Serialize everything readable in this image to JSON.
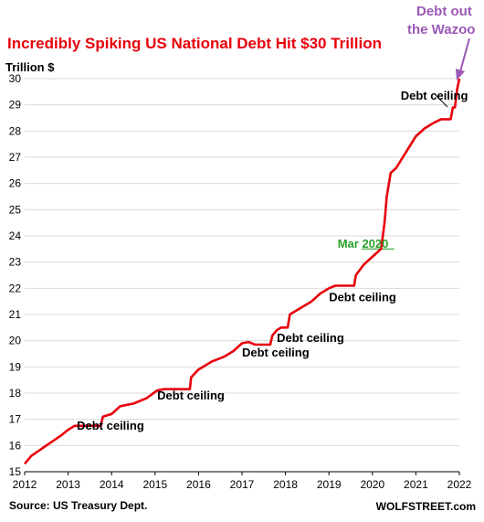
{
  "chart_data": {
    "type": "line",
    "title": "Incredibly Spiking US National Debt Hit $30 Trillion",
    "ylabel": "Trillion $",
    "xlabel": "",
    "xlim": [
      2012,
      2022
    ],
    "ylim": [
      15,
      30
    ],
    "grid": true,
    "x_ticks": [
      "2012",
      "2013",
      "2014",
      "2015",
      "2016",
      "2017",
      "2018",
      "2019",
      "2020",
      "2021",
      "2022"
    ],
    "y_ticks": [
      "15",
      "16",
      "17",
      "18",
      "19",
      "20",
      "21",
      "22",
      "23",
      "24",
      "25",
      "26",
      "27",
      "28",
      "29",
      "30"
    ],
    "series": [
      {
        "color": "#e8000b",
        "points": [
          [
            2012.0,
            15.3
          ],
          [
            2012.15,
            15.6
          ],
          [
            2012.5,
            16.0
          ],
          [
            2012.85,
            16.4
          ],
          [
            2013.0,
            16.6
          ],
          [
            2013.15,
            16.75
          ],
          [
            2013.4,
            16.75
          ],
          [
            2013.75,
            16.75
          ],
          [
            2013.8,
            17.1
          ],
          [
            2014.0,
            17.2
          ],
          [
            2014.2,
            17.5
          ],
          [
            2014.5,
            17.6
          ],
          [
            2014.8,
            17.8
          ],
          [
            2015.05,
            18.1
          ],
          [
            2015.2,
            18.15
          ],
          [
            2015.5,
            18.15
          ],
          [
            2015.8,
            18.15
          ],
          [
            2015.83,
            18.6
          ],
          [
            2016.0,
            18.9
          ],
          [
            2016.3,
            19.2
          ],
          [
            2016.6,
            19.4
          ],
          [
            2016.8,
            19.6
          ],
          [
            2017.0,
            19.9
          ],
          [
            2017.15,
            19.95
          ],
          [
            2017.3,
            19.85
          ],
          [
            2017.5,
            19.85
          ],
          [
            2017.65,
            19.85
          ],
          [
            2017.7,
            20.2
          ],
          [
            2017.8,
            20.4
          ],
          [
            2017.9,
            20.5
          ],
          [
            2018.05,
            20.5
          ],
          [
            2018.1,
            21.0
          ],
          [
            2018.3,
            21.2
          ],
          [
            2018.6,
            21.5
          ],
          [
            2018.8,
            21.8
          ],
          [
            2019.0,
            22.0
          ],
          [
            2019.15,
            22.1
          ],
          [
            2019.4,
            22.1
          ],
          [
            2019.58,
            22.1
          ],
          [
            2019.62,
            22.5
          ],
          [
            2019.8,
            22.9
          ],
          [
            2020.0,
            23.2
          ],
          [
            2020.2,
            23.5
          ],
          [
            2020.28,
            24.5
          ],
          [
            2020.33,
            25.5
          ],
          [
            2020.42,
            26.4
          ],
          [
            2020.55,
            26.6
          ],
          [
            2020.7,
            27.0
          ],
          [
            2020.85,
            27.4
          ],
          [
            2021.0,
            27.8
          ],
          [
            2021.2,
            28.1
          ],
          [
            2021.4,
            28.3
          ],
          [
            2021.58,
            28.45
          ],
          [
            2021.8,
            28.45
          ],
          [
            2021.85,
            28.9
          ],
          [
            2021.9,
            28.9
          ],
          [
            2021.95,
            29.6
          ],
          [
            2022.0,
            30.0
          ]
        ]
      }
    ],
    "annotations": [
      {
        "text": "Debt ceiling",
        "x": 2013.2,
        "y": 16.6
      },
      {
        "text": "Debt ceiling",
        "x": 2015.05,
        "y": 17.75
      },
      {
        "text": "Debt ceiling",
        "x": 2017.0,
        "y": 19.4
      },
      {
        "text": "Debt ceiling",
        "x": 2017.8,
        "y": 19.95
      },
      {
        "text": "Debt ceiling",
        "x": 2019.0,
        "y": 21.5
      },
      {
        "text": "Debt ceiling",
        "x": 2020.65,
        "y": 29.2
      },
      {
        "text": "Mar 2020",
        "x": 2019.2,
        "y": 23.55,
        "color": "#2ca02c"
      }
    ],
    "callout": {
      "lines": [
        "Debt out",
        "the Wazoo"
      ],
      "color": "#9b59b6"
    }
  },
  "footer": {
    "source": "Source: US Treasury Dept.",
    "brand": "WOLFSTREET.com"
  }
}
